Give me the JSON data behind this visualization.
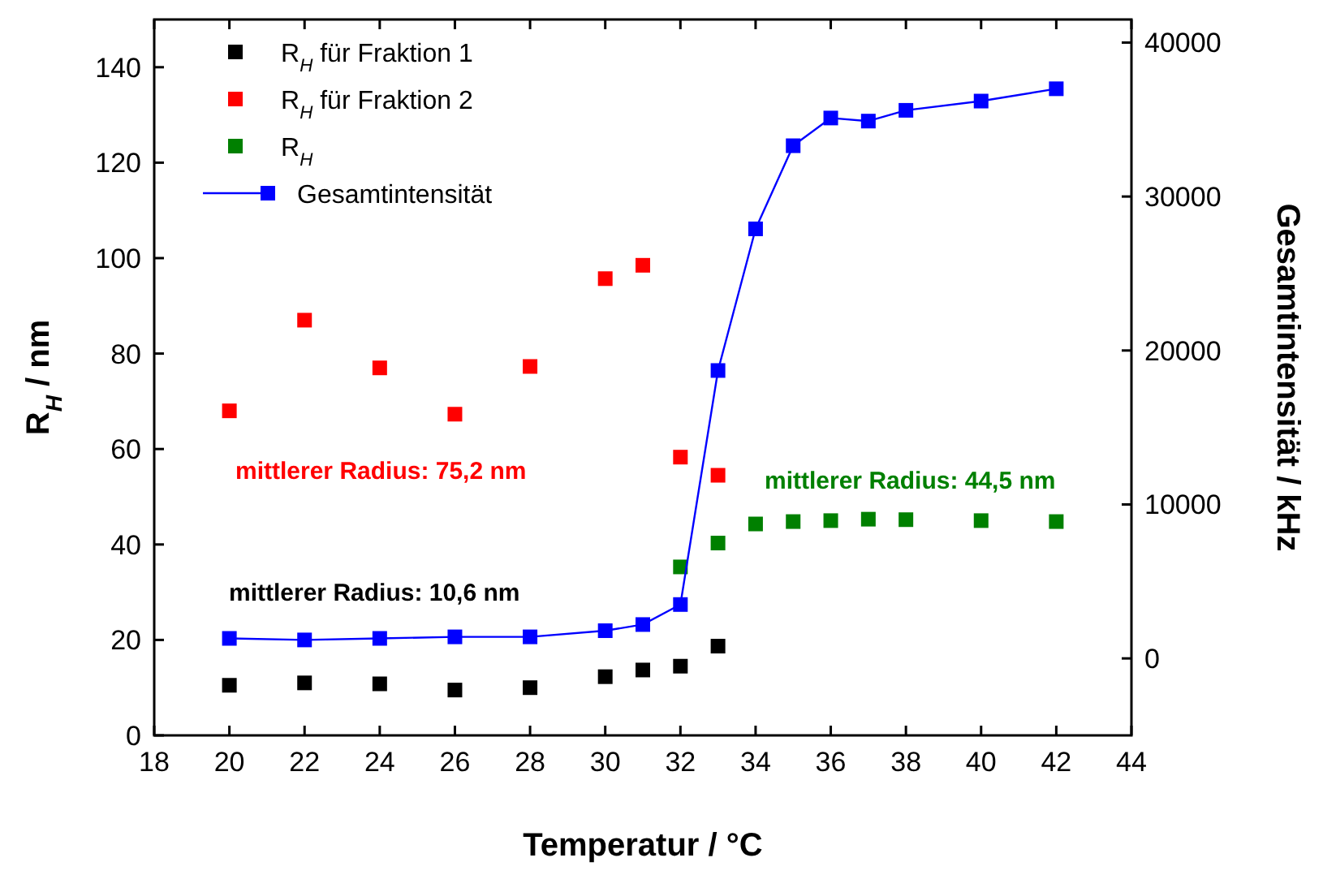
{
  "chart_data": {
    "type": "scatter",
    "xlabel": "Temperatur / °C",
    "ylabel": "R$_{H}$ / nm",
    "y2label": "Gesamtintensität / kHz",
    "xlim": [
      18,
      44
    ],
    "xticks": [
      18,
      20,
      22,
      24,
      26,
      28,
      30,
      32,
      34,
      36,
      38,
      40,
      42,
      44
    ],
    "ylim": [
      0,
      150
    ],
    "yticks": [
      0,
      20,
      40,
      60,
      80,
      100,
      120,
      140
    ],
    "y2lim": [
      -5000,
      41500
    ],
    "y2ticks": [
      0,
      10000,
      20000,
      30000,
      40000
    ],
    "marker": "square",
    "legend": "top left",
    "grid": false,
    "series": [
      {
        "name": "R$_{H}$ für Fraktion 1",
        "color": "#000000",
        "x": [
          20,
          22,
          24,
          26,
          28,
          30,
          31,
          32,
          33
        ],
        "values": [
          10.5,
          11,
          10.8,
          9.5,
          10,
          12.3,
          13.7,
          14.5,
          18.7
        ]
      },
      {
        "name": "R$_{H}$ für Fraktion 2",
        "color": "#ff0000",
        "x": [
          20,
          22,
          24,
          26,
          28,
          30,
          31,
          32,
          33
        ],
        "values": [
          68,
          87,
          77,
          67.3,
          77.3,
          95.7,
          98.5,
          58.3,
          54.5
        ]
      },
      {
        "name": "R$_{H}$",
        "color": "#008000",
        "x": [
          32,
          33,
          34,
          35,
          36,
          37,
          38,
          40,
          42
        ],
        "values": [
          35.3,
          40.3,
          44.3,
          44.8,
          45,
          45.3,
          45.2,
          45,
          44.8
        ]
      },
      {
        "name": "Gesamtintensität",
        "type": "line",
        "axis": "y2",
        "color": "#0000ff",
        "line_style": "solid",
        "x": [
          20,
          22,
          24,
          26,
          28,
          30,
          31,
          32,
          33,
          34,
          35,
          36,
          37,
          38,
          40,
          42
        ],
        "values": [
          1300,
          1200,
          1300,
          1400,
          1400,
          1800,
          2200,
          3500,
          18700,
          27900,
          33300,
          35100,
          34900,
          35600,
          36200,
          37000
        ]
      }
    ],
    "annotations": [
      "mittlerer Radius: 10,6 nm",
      "mittlerer Radius: 75,2 nm",
      "mittlerer Radius: 44,5 nm"
    ]
  }
}
